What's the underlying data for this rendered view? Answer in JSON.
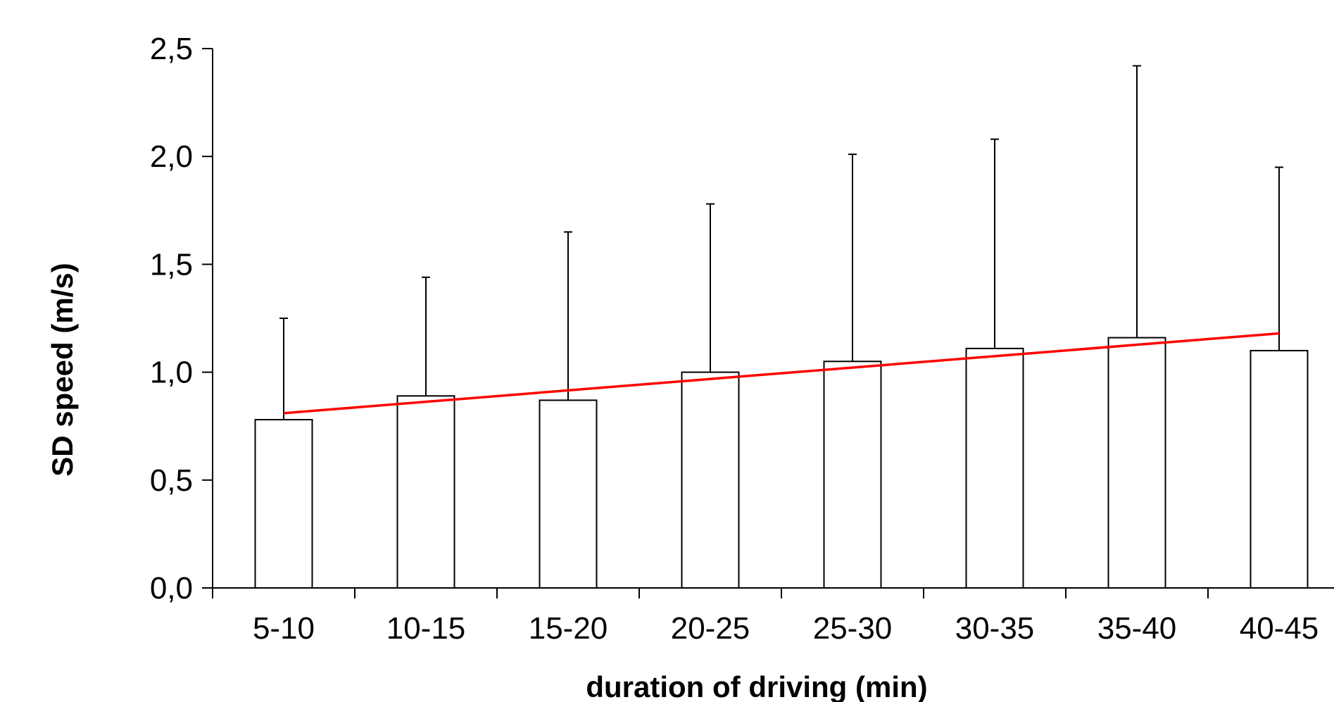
{
  "chart_data": {
    "type": "bar",
    "title": "",
    "xlabel": "duration of driving (min)",
    "ylabel": "SD speed (m/s)",
    "categories": [
      "5-10",
      "10-15",
      "15-20",
      "20-25",
      "25-30",
      "30-35",
      "35-40",
      "40-45"
    ],
    "series": [
      {
        "values": [
          0.78,
          0.89,
          0.87,
          1.0,
          1.05,
          1.11,
          1.16,
          1.1
        ],
        "error_upper": [
          1.25,
          1.44,
          1.65,
          1.78,
          2.01,
          2.08,
          2.42,
          1.95
        ]
      }
    ],
    "trendline": {
      "start": 0.81,
      "end": 1.18,
      "color": "#ff0000"
    },
    "ylim": [
      0,
      2.5
    ],
    "yticks": [
      "0,0",
      "0,5",
      "1,0",
      "1,5",
      "2,0",
      "2,5"
    ],
    "ytick_values": [
      0,
      0.5,
      1.0,
      1.5,
      2.0,
      2.5
    ],
    "grid": false,
    "legend": "none",
    "bar_fill": "#ffffff",
    "bar_stroke": "#000000"
  }
}
